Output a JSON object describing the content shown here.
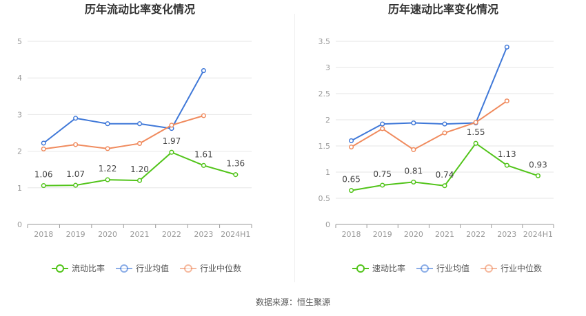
{
  "source": "数据来源：恒生聚源",
  "colors": {
    "main": "#52c41a",
    "avg": "#3f78d8",
    "median": "#f08b5e"
  },
  "chart_data": [
    {
      "type": "line",
      "title": "历年流动比率变化情况",
      "categories": [
        "2018",
        "2019",
        "2020",
        "2021",
        "2022",
        "2023",
        "2024H1"
      ],
      "ylim": [
        0,
        5
      ],
      "yticks": [
        "0",
        "1",
        "2",
        "3",
        "4",
        "5"
      ],
      "grid": true,
      "legend_position": "bottom",
      "series": [
        {
          "name": "流动比率",
          "values": [
            1.06,
            1.07,
            1.22,
            1.2,
            1.97,
            1.61,
            1.36
          ],
          "labels": [
            "1.06",
            "1.07",
            "1.22",
            "1.20",
            "1.97",
            "1.61",
            "1.36"
          ]
        },
        {
          "name": "行业均值",
          "values": [
            2.22,
            2.9,
            2.75,
            2.75,
            2.62,
            4.2,
            null
          ]
        },
        {
          "name": "行业中位数",
          "values": [
            2.06,
            2.18,
            2.07,
            2.21,
            2.71,
            2.97,
            null
          ]
        }
      ]
    },
    {
      "type": "line",
      "title": "历年速动比率变化情况",
      "categories": [
        "2018",
        "2019",
        "2020",
        "2021",
        "2022",
        "2023",
        "2024H1"
      ],
      "ylim": [
        0,
        3.5
      ],
      "yticks": [
        "0",
        "0.5",
        "1",
        "1.5",
        "2",
        "2.5",
        "3",
        "3.5"
      ],
      "grid": true,
      "legend_position": "bottom",
      "series": [
        {
          "name": "速动比率",
          "values": [
            0.65,
            0.75,
            0.81,
            0.74,
            1.55,
            1.13,
            0.93
          ],
          "labels": [
            "0.65",
            "0.75",
            "0.81",
            "0.74",
            "1.55",
            "1.13",
            "0.93"
          ]
        },
        {
          "name": "行业均值",
          "values": [
            1.6,
            1.92,
            1.94,
            1.92,
            1.94,
            3.39,
            null
          ]
        },
        {
          "name": "行业中位数",
          "values": [
            1.48,
            1.83,
            1.43,
            1.75,
            1.95,
            2.36,
            null
          ]
        }
      ]
    }
  ]
}
